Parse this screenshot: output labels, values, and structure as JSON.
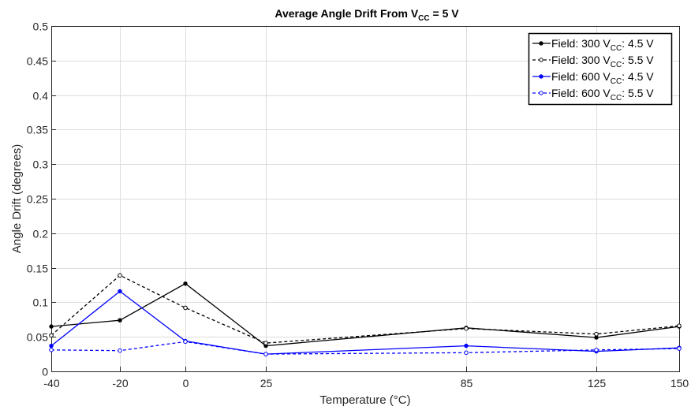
{
  "chart_data": {
    "type": "line",
    "title": "Average Angle Drift From V",
    "title_sub": "CC",
    "title_suffix": " = 5 V",
    "xlabel": "Temperature (°C)",
    "ylabel": "Angle Drift (degrees)",
    "x": [
      -40,
      -20,
      0,
      25,
      85,
      125,
      150
    ],
    "x_tick_labels": [
      "-40",
      "-20",
      "0",
      "25",
      "85",
      "125",
      "150"
    ],
    "y_ticks": [
      0,
      0.05,
      0.1,
      0.15,
      0.2,
      0.25,
      0.3,
      0.35,
      0.4,
      0.45,
      0.5
    ],
    "y_tick_labels": [
      "0",
      "0.05",
      "0.1",
      "0.15",
      "0.2",
      "0.25",
      "0.3",
      "0.35",
      "0.4",
      "0.45",
      "0.5"
    ],
    "ylim": [
      0,
      0.5
    ],
    "grid": true,
    "legend_position": "top-right",
    "series": [
      {
        "name": "Field: 300 V",
        "name_sub": "CC",
        "name_suffix": ": 4.5 V",
        "color": "#000000",
        "dashed": false,
        "marker": "filled",
        "values": [
          0.065,
          0.074,
          0.127,
          0.037,
          0.063,
          0.049,
          0.065
        ]
      },
      {
        "name": "Field: 300 V",
        "name_sub": "CC",
        "name_suffix": ": 5.5 V",
        "color": "#000000",
        "dashed": true,
        "marker": "open",
        "values": [
          0.052,
          0.139,
          0.092,
          0.041,
          0.062,
          0.054,
          0.066
        ]
      },
      {
        "name": "Field: 600 V",
        "name_sub": "CC",
        "name_suffix": ": 4.5 V",
        "color": "#0000ff",
        "dashed": false,
        "marker": "filled",
        "values": [
          0.037,
          0.116,
          0.044,
          0.025,
          0.037,
          0.029,
          0.034
        ]
      },
      {
        "name": "Field: 600 V",
        "name_sub": "CC",
        "name_suffix": ": 5.5 V",
        "color": "#0000ff",
        "dashed": true,
        "marker": "open",
        "values": [
          0.031,
          0.03,
          0.043,
          0.025,
          0.027,
          0.031,
          0.033
        ]
      }
    ]
  }
}
